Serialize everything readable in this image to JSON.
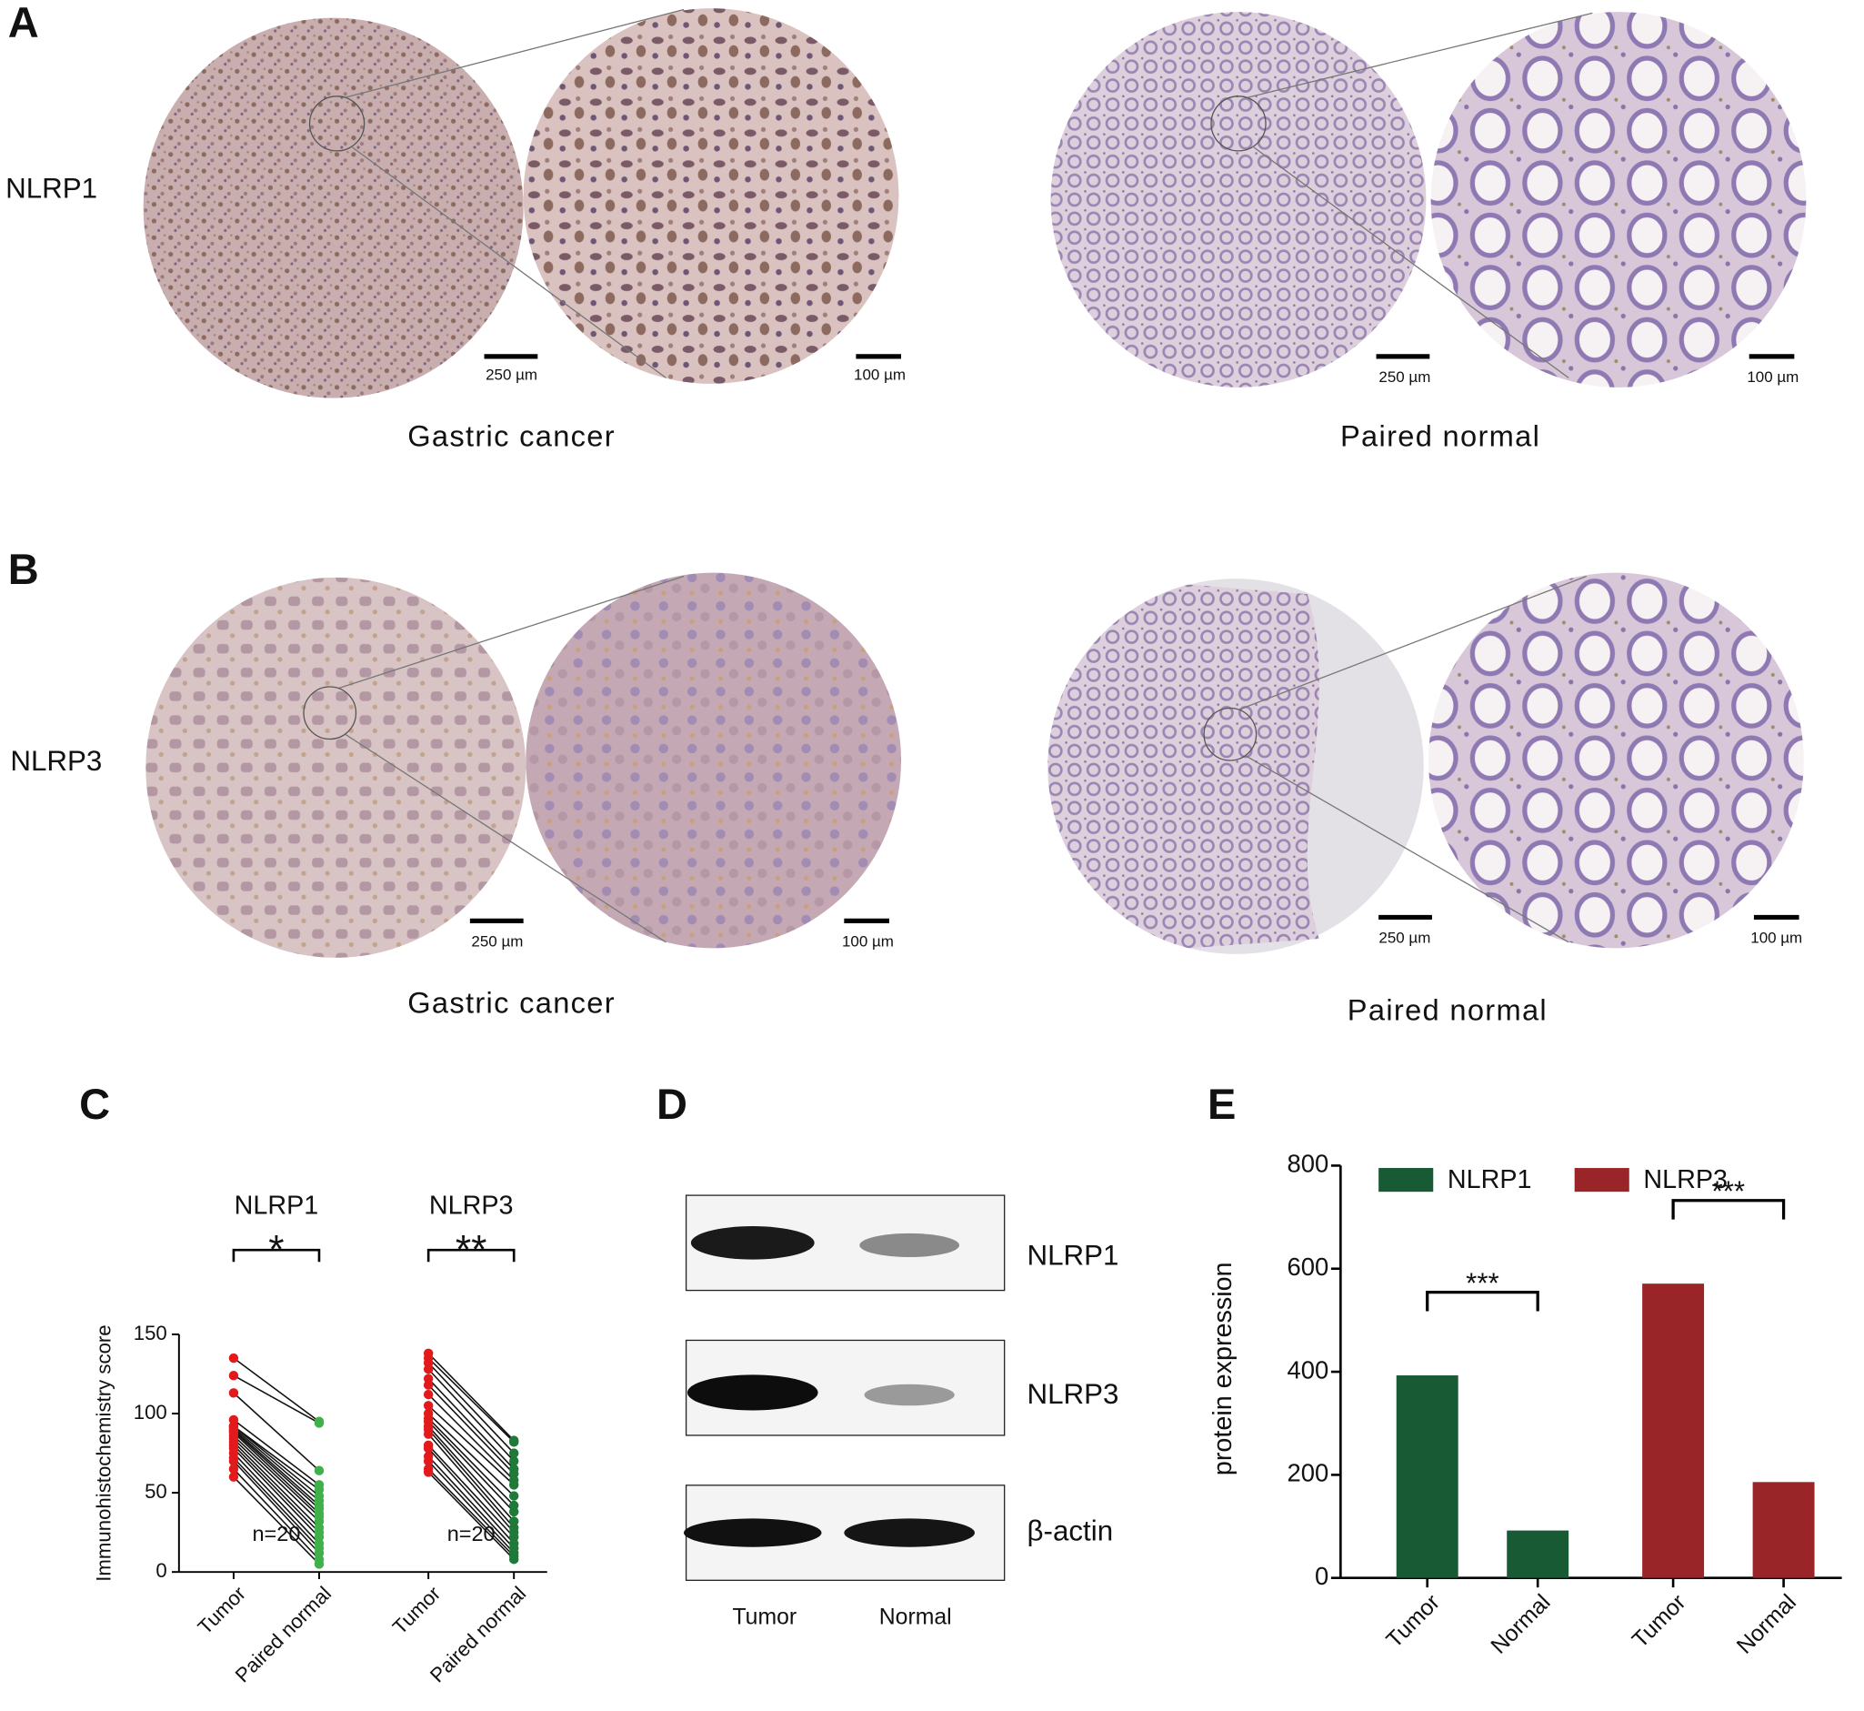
{
  "panels": {
    "A": {
      "label": "A",
      "row_label": "NLRP1",
      "scale_bars": [
        "250 µm",
        "100 µm",
        "250 µm",
        "100 µm"
      ],
      "captions": [
        "Gastric cancer",
        "Paired  normal"
      ]
    },
    "B": {
      "label": "B",
      "row_label": "NLRP3",
      "scale_bars": [
        "250 µm",
        "100 µm",
        "250 µm",
        "100 µm"
      ],
      "captions": [
        "Gastric cancer",
        "Paired  normal"
      ]
    },
    "C": {
      "label": "C"
    },
    "D": {
      "label": "D",
      "bands": [
        "NLRP1",
        "NLRP3",
        "β-actin"
      ],
      "lanes": [
        "Tumor",
        "Normal"
      ]
    },
    "E": {
      "label": "E"
    }
  },
  "chart_data": [
    {
      "type": "paired-dot",
      "ylabel": "Immunohistochemistry score",
      "ylim": [
        0,
        150
      ],
      "yticks": [
        0,
        50,
        100,
        150
      ],
      "groups": [
        {
          "name": "NLRP1",
          "significance": "*",
          "n_label": "n=20",
          "categories": [
            "Tumor",
            "Paired normal"
          ],
          "series": [
            {
              "color": "#e31a1c",
              "values": [
                135,
                124,
                113,
                96,
                92,
                92,
                91,
                90,
                89,
                88,
                86,
                84,
                82,
                80,
                78,
                75,
                72,
                70,
                65,
                60
              ]
            },
            {
              "color": "#3fb04a",
              "values": [
                95,
                94,
                64,
                55,
                52,
                48,
                45,
                42,
                40,
                37,
                35,
                32,
                28,
                25,
                22,
                18,
                15,
                12,
                8,
                5
              ]
            }
          ]
        },
        {
          "name": "NLRP3",
          "significance": "**",
          "n_label": "n=20",
          "categories": [
            "Tumor",
            "Paired normal"
          ],
          "series": [
            {
              "color": "#e31a1c",
              "values": [
                138,
                135,
                132,
                128,
                122,
                118,
                112,
                105,
                100,
                97,
                95,
                92,
                90,
                87,
                80,
                78,
                73,
                70,
                65,
                63
              ]
            },
            {
              "color": "#1f7a3a",
              "values": [
                83,
                82,
                75,
                70,
                65,
                62,
                58,
                55,
                48,
                42,
                38,
                32,
                28,
                25,
                22,
                18,
                15,
                12,
                10,
                8
              ]
            }
          ]
        }
      ]
    },
    {
      "type": "bar",
      "ylabel": "protein expression",
      "ylim": [
        0,
        800
      ],
      "yticks": [
        0,
        200,
        400,
        600,
        800
      ],
      "categories": [
        "Tumor",
        "Normal",
        "Tumor",
        "Normal"
      ],
      "series": [
        {
          "name": "NLRP1",
          "color": "#175a34",
          "values": [
            393,
            92,
            null,
            null
          ]
        },
        {
          "name": "NLRP3",
          "color": "#9a2529",
          "values": [
            null,
            null,
            571,
            186
          ]
        }
      ],
      "annotations": [
        "***",
        "***"
      ],
      "legend": "top"
    }
  ]
}
